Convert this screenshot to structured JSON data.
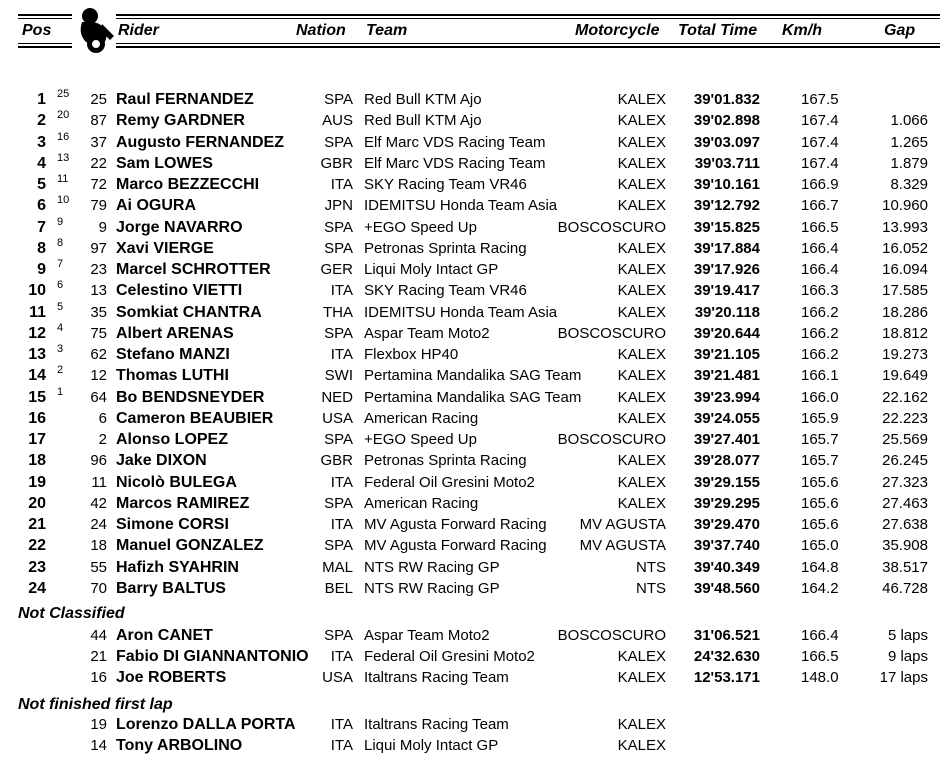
{
  "header": {
    "pos": "Pos",
    "rider": "Rider",
    "nation": "Nation",
    "team": "Team",
    "motorcycle": "Motorcycle",
    "total_time": "Total Time",
    "kmh": "Km/h",
    "gap": "Gap"
  },
  "classified": [
    {
      "pos": "1",
      "grid": "25",
      "num": "25",
      "name": "Raul FERNANDEZ",
      "nation": "SPA",
      "team": "Red Bull KTM Ajo",
      "moto": "KALEX",
      "time": "39'01.832",
      "kmh": "167.5",
      "gap": ""
    },
    {
      "pos": "2",
      "grid": "20",
      "num": "87",
      "name": "Remy GARDNER",
      "nation": "AUS",
      "team": "Red Bull KTM Ajo",
      "moto": "KALEX",
      "time": "39'02.898",
      "kmh": "167.4",
      "gap": "1.066"
    },
    {
      "pos": "3",
      "grid": "16",
      "num": "37",
      "name": "Augusto FERNANDEZ",
      "nation": "SPA",
      "team": "Elf Marc VDS Racing Team",
      "moto": "KALEX",
      "time": "39'03.097",
      "kmh": "167.4",
      "gap": "1.265"
    },
    {
      "pos": "4",
      "grid": "13",
      "num": "22",
      "name": "Sam LOWES",
      "nation": "GBR",
      "team": "Elf Marc VDS Racing Team",
      "moto": "KALEX",
      "time": "39'03.711",
      "kmh": "167.4",
      "gap": "1.879"
    },
    {
      "pos": "5",
      "grid": "11",
      "num": "72",
      "name": "Marco BEZZECCHI",
      "nation": "ITA",
      "team": "SKY Racing Team VR46",
      "moto": "KALEX",
      "time": "39'10.161",
      "kmh": "166.9",
      "gap": "8.329"
    },
    {
      "pos": "6",
      "grid": "10",
      "num": "79",
      "name": "Ai OGURA",
      "nation": "JPN",
      "team": "IDEMITSU Honda Team Asia",
      "moto": "KALEX",
      "time": "39'12.792",
      "kmh": "166.7",
      "gap": "10.960"
    },
    {
      "pos": "7",
      "grid": "9",
      "num": "9",
      "name": "Jorge NAVARRO",
      "nation": "SPA",
      "team": "+EGO Speed Up",
      "moto": "BOSCOSCURO",
      "time": "39'15.825",
      "kmh": "166.5",
      "gap": "13.993"
    },
    {
      "pos": "8",
      "grid": "8",
      "num": "97",
      "name": "Xavi VIERGE",
      "nation": "SPA",
      "team": "Petronas Sprinta Racing",
      "moto": "KALEX",
      "time": "39'17.884",
      "kmh": "166.4",
      "gap": "16.052"
    },
    {
      "pos": "9",
      "grid": "7",
      "num": "23",
      "name": "Marcel SCHROTTER",
      "nation": "GER",
      "team": "Liqui Moly Intact GP",
      "moto": "KALEX",
      "time": "39'17.926",
      "kmh": "166.4",
      "gap": "16.094"
    },
    {
      "pos": "10",
      "grid": "6",
      "num": "13",
      "name": "Celestino VIETTI",
      "nation": "ITA",
      "team": "SKY Racing Team VR46",
      "moto": "KALEX",
      "time": "39'19.417",
      "kmh": "166.3",
      "gap": "17.585"
    },
    {
      "pos": "11",
      "grid": "5",
      "num": "35",
      "name": "Somkiat CHANTRA",
      "nation": "THA",
      "team": "IDEMITSU Honda Team Asia",
      "moto": "KALEX",
      "time": "39'20.118",
      "kmh": "166.2",
      "gap": "18.286"
    },
    {
      "pos": "12",
      "grid": "4",
      "num": "75",
      "name": "Albert ARENAS",
      "nation": "SPA",
      "team": "Aspar Team Moto2",
      "moto": "BOSCOSCURO",
      "time": "39'20.644",
      "kmh": "166.2",
      "gap": "18.812"
    },
    {
      "pos": "13",
      "grid": "3",
      "num": "62",
      "name": "Stefano MANZI",
      "nation": "ITA",
      "team": "Flexbox HP40",
      "moto": "KALEX",
      "time": "39'21.105",
      "kmh": "166.2",
      "gap": "19.273"
    },
    {
      "pos": "14",
      "grid": "2",
      "num": "12",
      "name": "Thomas LUTHI",
      "nation": "SWI",
      "team": "Pertamina Mandalika SAG Team",
      "moto": "KALEX",
      "time": "39'21.481",
      "kmh": "166.1",
      "gap": "19.649"
    },
    {
      "pos": "15",
      "grid": "1",
      "num": "64",
      "name": "Bo BENDSNEYDER",
      "nation": "NED",
      "team": "Pertamina Mandalika SAG Team",
      "moto": "KALEX",
      "time": "39'23.994",
      "kmh": "166.0",
      "gap": "22.162"
    },
    {
      "pos": "16",
      "grid": "",
      "num": "6",
      "name": "Cameron BEAUBIER",
      "nation": "USA",
      "team": "American Racing",
      "moto": "KALEX",
      "time": "39'24.055",
      "kmh": "165.9",
      "gap": "22.223"
    },
    {
      "pos": "17",
      "grid": "",
      "num": "2",
      "name": "Alonso LOPEZ",
      "nation": "SPA",
      "team": "+EGO Speed Up",
      "moto": "BOSCOSCURO",
      "time": "39'27.401",
      "kmh": "165.7",
      "gap": "25.569"
    },
    {
      "pos": "18",
      "grid": "",
      "num": "96",
      "name": "Jake DIXON",
      "nation": "GBR",
      "team": "Petronas Sprinta Racing",
      "moto": "KALEX",
      "time": "39'28.077",
      "kmh": "165.7",
      "gap": "26.245"
    },
    {
      "pos": "19",
      "grid": "",
      "num": "11",
      "name": "Nicolò BULEGA",
      "nation": "ITA",
      "team": "Federal Oil Gresini Moto2",
      "moto": "KALEX",
      "time": "39'29.155",
      "kmh": "165.6",
      "gap": "27.323"
    },
    {
      "pos": "20",
      "grid": "",
      "num": "42",
      "name": "Marcos RAMIREZ",
      "nation": "SPA",
      "team": "American Racing",
      "moto": "KALEX",
      "time": "39'29.295",
      "kmh": "165.6",
      "gap": "27.463"
    },
    {
      "pos": "21",
      "grid": "",
      "num": "24",
      "name": "Simone CORSI",
      "nation": "ITA",
      "team": "MV Agusta Forward Racing",
      "moto": "MV AGUSTA",
      "time": "39'29.470",
      "kmh": "165.6",
      "gap": "27.638"
    },
    {
      "pos": "22",
      "grid": "",
      "num": "18",
      "name": "Manuel GONZALEZ",
      "nation": "SPA",
      "team": "MV Agusta Forward Racing",
      "moto": "MV AGUSTA",
      "time": "39'37.740",
      "kmh": "165.0",
      "gap": "35.908"
    },
    {
      "pos": "23",
      "grid": "",
      "num": "55",
      "name": "Hafizh SYAHRIN",
      "nation": "MAL",
      "team": "NTS RW Racing GP",
      "moto": "NTS",
      "time": "39'40.349",
      "kmh": "164.8",
      "gap": "38.517"
    },
    {
      "pos": "24",
      "grid": "",
      "num": "70",
      "name": "Barry BALTUS",
      "nation": "BEL",
      "team": "NTS RW Racing GP",
      "moto": "NTS",
      "time": "39'48.560",
      "kmh": "164.2",
      "gap": "46.728"
    }
  ],
  "not_classified_title": "Not Classified",
  "not_classified": [
    {
      "pos": "",
      "grid": "",
      "num": "44",
      "name": "Aron CANET",
      "nation": "SPA",
      "team": "Aspar Team Moto2",
      "moto": "BOSCOSCURO",
      "time": "31'06.521",
      "kmh": "166.4",
      "gap": "5 laps"
    },
    {
      "pos": "",
      "grid": "",
      "num": "21",
      "name": "Fabio DI GIANNANTONIO",
      "nation": "ITA",
      "team": "Federal Oil Gresini Moto2",
      "moto": "KALEX",
      "time": "24'32.630",
      "kmh": "166.5",
      "gap": "9 laps"
    },
    {
      "pos": "",
      "grid": "",
      "num": "16",
      "name": "Joe ROBERTS",
      "nation": "USA",
      "team": "Italtrans Racing Team",
      "moto": "KALEX",
      "time": "12'53.171",
      "kmh": "148.0",
      "gap": "17 laps"
    }
  ],
  "not_finished_title": "Not finished first lap",
  "not_finished": [
    {
      "pos": "",
      "grid": "",
      "num": "19",
      "name": "Lorenzo DALLA PORTA",
      "nation": "ITA",
      "team": "Italtrans Racing Team",
      "moto": "KALEX",
      "time": "",
      "kmh": "",
      "gap": ""
    },
    {
      "pos": "",
      "grid": "",
      "num": "14",
      "name": "Tony ARBOLINO",
      "nation": "ITA",
      "team": "Liqui Moly Intact GP",
      "moto": "KALEX",
      "time": "",
      "kmh": "",
      "gap": ""
    }
  ]
}
